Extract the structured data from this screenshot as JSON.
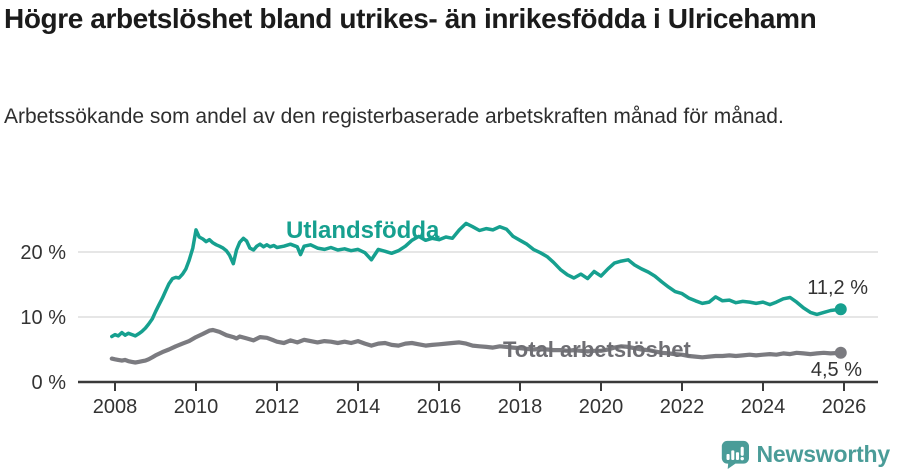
{
  "header": {
    "title": "Högre arbetslöshet bland utrikes- än inrikesfödda i Ulricehamn",
    "subtitle": "Arbetssökande som andel av den registerbaserade arbetskraften månad för månad."
  },
  "footer": {
    "brand": "Newsworthy"
  },
  "colors": {
    "foreign_born": "#16a08f",
    "total": "#7b7b80",
    "total_label": "#6e6e73",
    "grid": "#d8d8d8",
    "axis": "#3a3a3a",
    "tick_label": "#333333",
    "value_label": "#333333",
    "logo": "#4a9c98"
  },
  "chart_data": {
    "type": "line",
    "unit": "%",
    "title": "Högre arbetslöshet bland utrikes- än inrikesfödda i Ulricehamn",
    "subtitle": "Arbetssökande som andel av den registerbaserade arbetskraften månad för månad.",
    "x_axis": {
      "ticks": [
        2008,
        2010,
        2012,
        2014,
        2016,
        2018,
        2020,
        2022,
        2024,
        2026
      ]
    },
    "y_axis": {
      "ticks": [
        0,
        10,
        20
      ],
      "tick_suffix": " %",
      "max": 26
    },
    "grid": "horizontal",
    "legend_position": "inline-labels",
    "series": [
      {
        "name": "Utlandsfödda",
        "end_label": "11,2 %",
        "last_value": 11.2,
        "points": [
          [
            2007.92,
            7.0
          ],
          [
            2008.0,
            7.3
          ],
          [
            2008.08,
            7.1
          ],
          [
            2008.17,
            7.6
          ],
          [
            2008.25,
            7.2
          ],
          [
            2008.33,
            7.5
          ],
          [
            2008.42,
            7.3
          ],
          [
            2008.5,
            7.1
          ],
          [
            2008.58,
            7.4
          ],
          [
            2008.67,
            7.8
          ],
          [
            2008.75,
            8.3
          ],
          [
            2008.83,
            8.9
          ],
          [
            2008.92,
            9.7
          ],
          [
            2009.0,
            10.8
          ],
          [
            2009.08,
            11.8
          ],
          [
            2009.17,
            12.9
          ],
          [
            2009.25,
            14.0
          ],
          [
            2009.33,
            15.1
          ],
          [
            2009.42,
            15.9
          ],
          [
            2009.5,
            16.1
          ],
          [
            2009.58,
            16.0
          ],
          [
            2009.67,
            16.6
          ],
          [
            2009.75,
            17.4
          ],
          [
            2009.83,
            18.7
          ],
          [
            2009.92,
            20.6
          ],
          [
            2010.0,
            23.4
          ],
          [
            2010.08,
            22.3
          ],
          [
            2010.17,
            22.0
          ],
          [
            2010.25,
            21.6
          ],
          [
            2010.33,
            21.9
          ],
          [
            2010.42,
            21.4
          ],
          [
            2010.5,
            21.1
          ],
          [
            2010.58,
            20.9
          ],
          [
            2010.67,
            20.6
          ],
          [
            2010.75,
            20.2
          ],
          [
            2010.83,
            19.5
          ],
          [
            2010.92,
            18.2
          ],
          [
            2011.0,
            20.3
          ],
          [
            2011.08,
            21.5
          ],
          [
            2011.17,
            22.1
          ],
          [
            2011.25,
            21.7
          ],
          [
            2011.33,
            20.6
          ],
          [
            2011.42,
            20.3
          ],
          [
            2011.5,
            20.9
          ],
          [
            2011.58,
            21.2
          ],
          [
            2011.67,
            20.8
          ],
          [
            2011.75,
            21.1
          ],
          [
            2011.83,
            20.8
          ],
          [
            2011.92,
            21.0
          ],
          [
            2012.0,
            20.7
          ],
          [
            2012.17,
            20.9
          ],
          [
            2012.33,
            21.2
          ],
          [
            2012.5,
            20.8
          ],
          [
            2012.58,
            19.6
          ],
          [
            2012.67,
            20.9
          ],
          [
            2012.83,
            21.1
          ],
          [
            2013.0,
            20.6
          ],
          [
            2013.17,
            20.4
          ],
          [
            2013.33,
            20.7
          ],
          [
            2013.5,
            20.3
          ],
          [
            2013.67,
            20.5
          ],
          [
            2013.83,
            20.2
          ],
          [
            2014.0,
            20.4
          ],
          [
            2014.17,
            19.9
          ],
          [
            2014.33,
            18.8
          ],
          [
            2014.5,
            20.4
          ],
          [
            2014.67,
            20.1
          ],
          [
            2014.83,
            19.8
          ],
          [
            2015.0,
            20.2
          ],
          [
            2015.17,
            20.9
          ],
          [
            2015.33,
            21.8
          ],
          [
            2015.5,
            22.4
          ],
          [
            2015.67,
            21.8
          ],
          [
            2015.83,
            22.1
          ],
          [
            2016.0,
            21.9
          ],
          [
            2016.17,
            22.3
          ],
          [
            2016.33,
            22.1
          ],
          [
            2016.5,
            23.4
          ],
          [
            2016.67,
            24.4
          ],
          [
            2016.83,
            23.9
          ],
          [
            2017.0,
            23.3
          ],
          [
            2017.17,
            23.6
          ],
          [
            2017.33,
            23.4
          ],
          [
            2017.5,
            23.9
          ],
          [
            2017.67,
            23.5
          ],
          [
            2017.83,
            22.4
          ],
          [
            2018.0,
            21.8
          ],
          [
            2018.17,
            21.2
          ],
          [
            2018.33,
            20.4
          ],
          [
            2018.5,
            19.9
          ],
          [
            2018.67,
            19.3
          ],
          [
            2018.83,
            18.4
          ],
          [
            2019.0,
            17.3
          ],
          [
            2019.17,
            16.5
          ],
          [
            2019.33,
            16.0
          ],
          [
            2019.5,
            16.6
          ],
          [
            2019.67,
            15.9
          ],
          [
            2019.83,
            17.0
          ],
          [
            2020.0,
            16.3
          ],
          [
            2020.17,
            17.4
          ],
          [
            2020.33,
            18.3
          ],
          [
            2020.5,
            18.6
          ],
          [
            2020.67,
            18.8
          ],
          [
            2020.83,
            18.0
          ],
          [
            2021.0,
            17.4
          ],
          [
            2021.17,
            16.9
          ],
          [
            2021.33,
            16.3
          ],
          [
            2021.5,
            15.4
          ],
          [
            2021.67,
            14.6
          ],
          [
            2021.83,
            13.9
          ],
          [
            2022.0,
            13.6
          ],
          [
            2022.17,
            12.9
          ],
          [
            2022.33,
            12.5
          ],
          [
            2022.5,
            12.1
          ],
          [
            2022.67,
            12.3
          ],
          [
            2022.83,
            13.1
          ],
          [
            2023.0,
            12.5
          ],
          [
            2023.17,
            12.6
          ],
          [
            2023.33,
            12.2
          ],
          [
            2023.5,
            12.4
          ],
          [
            2023.67,
            12.3
          ],
          [
            2023.83,
            12.1
          ],
          [
            2024.0,
            12.3
          ],
          [
            2024.17,
            11.9
          ],
          [
            2024.33,
            12.3
          ],
          [
            2024.5,
            12.8
          ],
          [
            2024.67,
            13.0
          ],
          [
            2024.83,
            12.3
          ],
          [
            2025.0,
            11.4
          ],
          [
            2025.17,
            10.7
          ],
          [
            2025.33,
            10.4
          ],
          [
            2025.5,
            10.7
          ],
          [
            2025.67,
            11.0
          ],
          [
            2025.92,
            11.2
          ]
        ]
      },
      {
        "name": "Total arbetslöshet",
        "end_label": "4,5 %",
        "last_value": 4.5,
        "points": [
          [
            2007.92,
            3.6
          ],
          [
            2008.0,
            3.5
          ],
          [
            2008.08,
            3.4
          ],
          [
            2008.17,
            3.3
          ],
          [
            2008.25,
            3.4
          ],
          [
            2008.33,
            3.2
          ],
          [
            2008.42,
            3.1
          ],
          [
            2008.5,
            3.0
          ],
          [
            2008.58,
            3.1
          ],
          [
            2008.67,
            3.2
          ],
          [
            2008.75,
            3.3
          ],
          [
            2008.83,
            3.5
          ],
          [
            2008.92,
            3.8
          ],
          [
            2009.0,
            4.1
          ],
          [
            2009.17,
            4.6
          ],
          [
            2009.33,
            5.0
          ],
          [
            2009.5,
            5.5
          ],
          [
            2009.67,
            5.9
          ],
          [
            2009.83,
            6.3
          ],
          [
            2010.0,
            6.9
          ],
          [
            2010.17,
            7.4
          ],
          [
            2010.33,
            7.9
          ],
          [
            2010.42,
            8.0
          ],
          [
            2010.58,
            7.7
          ],
          [
            2010.75,
            7.2
          ],
          [
            2010.92,
            6.9
          ],
          [
            2011.0,
            6.7
          ],
          [
            2011.08,
            7.0
          ],
          [
            2011.25,
            6.7
          ],
          [
            2011.42,
            6.4
          ],
          [
            2011.58,
            6.9
          ],
          [
            2011.75,
            6.8
          ],
          [
            2011.92,
            6.4
          ],
          [
            2012.0,
            6.2
          ],
          [
            2012.17,
            6.0
          ],
          [
            2012.33,
            6.4
          ],
          [
            2012.5,
            6.1
          ],
          [
            2012.67,
            6.5
          ],
          [
            2012.83,
            6.3
          ],
          [
            2013.0,
            6.1
          ],
          [
            2013.17,
            6.3
          ],
          [
            2013.33,
            6.2
          ],
          [
            2013.5,
            6.0
          ],
          [
            2013.67,
            6.2
          ],
          [
            2013.83,
            6.0
          ],
          [
            2014.0,
            6.3
          ],
          [
            2014.17,
            5.9
          ],
          [
            2014.33,
            5.6
          ],
          [
            2014.5,
            5.9
          ],
          [
            2014.67,
            6.0
          ],
          [
            2014.83,
            5.7
          ],
          [
            2015.0,
            5.6
          ],
          [
            2015.17,
            5.9
          ],
          [
            2015.33,
            6.0
          ],
          [
            2015.5,
            5.8
          ],
          [
            2015.67,
            5.6
          ],
          [
            2015.83,
            5.7
          ],
          [
            2016.0,
            5.8
          ],
          [
            2016.17,
            5.9
          ],
          [
            2016.33,
            6.0
          ],
          [
            2016.5,
            6.1
          ],
          [
            2016.67,
            5.9
          ],
          [
            2016.83,
            5.6
          ],
          [
            2017.0,
            5.5
          ],
          [
            2017.17,
            5.4
          ],
          [
            2017.33,
            5.3
          ],
          [
            2017.5,
            5.5
          ],
          [
            2017.67,
            5.4
          ],
          [
            2017.83,
            5.3
          ],
          [
            2018.0,
            5.2
          ],
          [
            2018.17,
            5.1
          ],
          [
            2018.33,
            5.0
          ],
          [
            2018.5,
            5.1
          ],
          [
            2018.67,
            5.0
          ],
          [
            2018.83,
            4.9
          ],
          [
            2019.0,
            4.9
          ],
          [
            2019.17,
            4.8
          ],
          [
            2019.33,
            4.9
          ],
          [
            2019.5,
            4.8
          ],
          [
            2019.67,
            4.7
          ],
          [
            2019.83,
            4.8
          ],
          [
            2020.0,
            4.8
          ],
          [
            2020.17,
            5.0
          ],
          [
            2020.33,
            5.3
          ],
          [
            2020.5,
            5.5
          ],
          [
            2020.67,
            5.4
          ],
          [
            2020.83,
            5.2
          ],
          [
            2021.0,
            5.0
          ],
          [
            2021.17,
            4.9
          ],
          [
            2021.33,
            4.7
          ],
          [
            2021.5,
            4.5
          ],
          [
            2021.67,
            4.4
          ],
          [
            2021.83,
            4.3
          ],
          [
            2022.0,
            4.2
          ],
          [
            2022.17,
            4.0
          ],
          [
            2022.33,
            3.9
          ],
          [
            2022.5,
            3.8
          ],
          [
            2022.67,
            3.9
          ],
          [
            2022.83,
            4.0
          ],
          [
            2023.0,
            4.0
          ],
          [
            2023.17,
            4.1
          ],
          [
            2023.33,
            4.0
          ],
          [
            2023.5,
            4.1
          ],
          [
            2023.67,
            4.2
          ],
          [
            2023.83,
            4.1
          ],
          [
            2024.0,
            4.2
          ],
          [
            2024.17,
            4.3
          ],
          [
            2024.33,
            4.2
          ],
          [
            2024.5,
            4.4
          ],
          [
            2024.67,
            4.3
          ],
          [
            2024.83,
            4.5
          ],
          [
            2025.0,
            4.4
          ],
          [
            2025.17,
            4.3
          ],
          [
            2025.33,
            4.4
          ],
          [
            2025.5,
            4.5
          ],
          [
            2025.67,
            4.4
          ],
          [
            2025.92,
            4.5
          ]
        ]
      }
    ]
  }
}
